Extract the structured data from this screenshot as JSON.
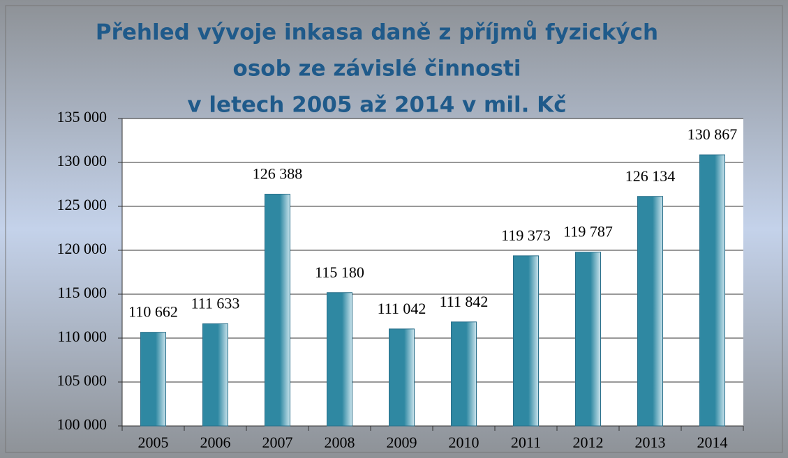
{
  "chart_data": {
    "type": "bar",
    "title": [
      "Přehled vývoje inkasa daně z příjmů fyzických",
      "osob ze závislé činnosti",
      "v letech 2005 až 2014 v mil. Kč"
    ],
    "categories": [
      "2005",
      "2006",
      "2007",
      "2008",
      "2009",
      "2010",
      "2011",
      "2012",
      "2013",
      "2014"
    ],
    "values": [
      110662,
      111633,
      126388,
      115180,
      111042,
      111842,
      119373,
      119787,
      126134,
      130867
    ],
    "value_labels": [
      "110 662",
      "111 633",
      "126 388",
      "115 180",
      "111 042",
      "111 842",
      "119 373",
      "119 787",
      "126 134",
      "130 867"
    ],
    "color": "#2f88a2",
    "ylim": [
      100000,
      135000
    ],
    "yticks": [
      {
        "value": 100000,
        "label": "100 000"
      },
      {
        "value": 105000,
        "label": "105 000"
      },
      {
        "value": 110000,
        "label": "110 000"
      },
      {
        "value": 115000,
        "label": "115 000"
      },
      {
        "value": 120000,
        "label": "120 000"
      },
      {
        "value": 125000,
        "label": "125 000"
      },
      {
        "value": 130000,
        "label": "130 000"
      },
      {
        "value": 135000,
        "label": "135 000"
      }
    ],
    "grid": true
  }
}
